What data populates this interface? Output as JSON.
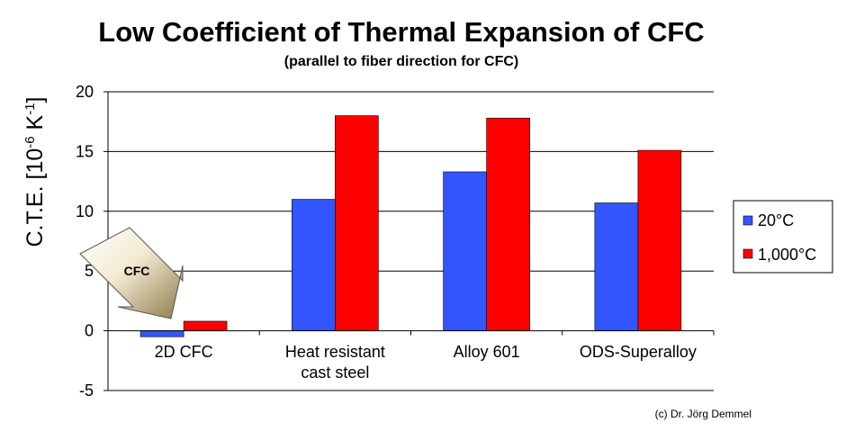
{
  "chart_data": {
    "type": "bar",
    "title": "Low Coefficient of Thermal Expansion of CFC",
    "subtitle": "(parallel to fiber direction for CFC)",
    "ylabel_main": "C.T.E. [10",
    "ylabel_exp1": "-6",
    "ylabel_mid": " K",
    "ylabel_exp2": "-1",
    "ylabel_end": "]",
    "ylim": [
      -5,
      20
    ],
    "yticks": [
      -5,
      0,
      5,
      10,
      15,
      20
    ],
    "categories": [
      {
        "line1": "2D CFC",
        "line2": ""
      },
      {
        "line1": "Heat resistant",
        "line2": "cast steel"
      },
      {
        "line1": "Alloy 601",
        "line2": ""
      },
      {
        "line1": "ODS-Superalloy",
        "line2": ""
      }
    ],
    "series": [
      {
        "name": "20°C",
        "color": "#3355ff",
        "values": [
          -0.5,
          11.0,
          13.3,
          10.7
        ]
      },
      {
        "name": "1,000°C",
        "color": "#ff0000",
        "values": [
          0.8,
          18.0,
          17.8,
          15.1
        ]
      }
    ],
    "grid": true,
    "legend_position": "right",
    "annotation": "CFC",
    "credit": "(c) Dr. Jörg Demmel"
  }
}
